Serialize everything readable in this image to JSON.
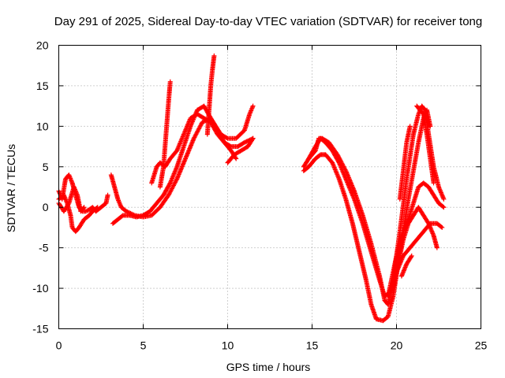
{
  "chart_data": {
    "type": "scatter",
    "title": "Day 291 of 2025, Sidereal Day-to-day VTEC variation (SDTVAR) for receiver tong",
    "xlabel": "GPS time / hours",
    "ylabel": "SDTVAR / TECUs",
    "xlim": [
      0,
      25
    ],
    "ylim": [
      -15,
      20
    ],
    "xticks": [
      0,
      5,
      10,
      15,
      20,
      25
    ],
    "yticks": [
      -15,
      -10,
      -5,
      0,
      5,
      10,
      15,
      20
    ],
    "grid": true,
    "marker": "+",
    "series": [
      {
        "name": "SDTVAR",
        "color": "#ff0000",
        "tracks": [
          [
            [
              0,
              2
            ],
            [
              0.2,
              1
            ],
            [
              0.4,
              3.5
            ],
            [
              0.6,
              4
            ],
            [
              0.8,
              3
            ],
            [
              1,
              1.5
            ],
            [
              1.2,
              0
            ],
            [
              1.4,
              -0.5
            ],
            [
              1.6,
              -0.5
            ],
            [
              1.8,
              -0.3
            ],
            [
              2,
              0
            ],
            [
              2.2,
              -0.5
            ],
            [
              2.5,
              0
            ],
            [
              2.8,
              0.5
            ],
            [
              2.9,
              1.5
            ]
          ],
          [
            [
              0,
              1
            ],
            [
              0.3,
              1.5
            ],
            [
              0.5,
              0.5
            ],
            [
              0.7,
              -1
            ],
            [
              0.8,
              -2.5
            ],
            [
              1,
              -3
            ],
            [
              1.2,
              -2.5
            ],
            [
              1.5,
              -1.5
            ],
            [
              1.8,
              -1
            ],
            [
              2,
              -0.5
            ],
            [
              2.3,
              0
            ]
          ],
          [
            [
              0,
              0.5
            ],
            [
              0.3,
              -0.5
            ],
            [
              0.6,
              0.5
            ],
            [
              0.9,
              2.5
            ],
            [
              1.1,
              1.5
            ],
            [
              1.3,
              -0.5
            ],
            [
              1.5,
              0
            ]
          ],
          [
            [
              3.1,
              4
            ],
            [
              3.3,
              2.5
            ],
            [
              3.5,
              1
            ],
            [
              3.7,
              0
            ],
            [
              4,
              -0.5
            ],
            [
              4.5,
              -1
            ],
            [
              5,
              -1.2
            ],
            [
              5.5,
              -1
            ],
            [
              6,
              0
            ],
            [
              6.5,
              1.5
            ],
            [
              7,
              3.5
            ],
            [
              7.5,
              6
            ],
            [
              8,
              8.5
            ],
            [
              8.5,
              10.5
            ],
            [
              9,
              11
            ],
            [
              9.3,
              10
            ],
            [
              9.6,
              9
            ],
            [
              10,
              8.5
            ],
            [
              10.5,
              8.5
            ],
            [
              11,
              9.5
            ],
            [
              11.3,
              11.5
            ],
            [
              11.5,
              12.5
            ]
          ],
          [
            [
              3.2,
              -2
            ],
            [
              3.5,
              -1.5
            ],
            [
              3.8,
              -1
            ],
            [
              4.2,
              -1
            ],
            [
              4.6,
              -1.2
            ],
            [
              5,
              -1
            ],
            [
              5.4,
              -0.5
            ],
            [
              5.8,
              0.5
            ],
            [
              6.2,
              1.5
            ],
            [
              6.6,
              3
            ],
            [
              7,
              5
            ],
            [
              7.4,
              7.5
            ],
            [
              7.8,
              10
            ],
            [
              8.2,
              12
            ],
            [
              8.6,
              12.5
            ],
            [
              9,
              11
            ],
            [
              9.4,
              9.5
            ],
            [
              9.8,
              8
            ],
            [
              10.2,
              7.5
            ],
            [
              10.6,
              7.5
            ],
            [
              11,
              8
            ],
            [
              11.5,
              8.5
            ]
          ],
          [
            [
              5.5,
              3
            ],
            [
              5.8,
              5
            ],
            [
              6,
              5.5
            ],
            [
              6.3,
              5
            ],
            [
              6.6,
              6
            ],
            [
              7,
              7
            ],
            [
              7.4,
              9
            ],
            [
              7.8,
              11
            ],
            [
              8.2,
              11.5
            ],
            [
              8.6,
              11
            ],
            [
              9,
              10.5
            ],
            [
              9.4,
              9
            ],
            [
              9.8,
              8
            ],
            [
              10.2,
              7
            ],
            [
              10.5,
              6
            ]
          ],
          [
            [
              6,
              2.5
            ],
            [
              6.2,
              5
            ],
            [
              6.35,
              9
            ],
            [
              6.5,
              13
            ],
            [
              6.6,
              15.5
            ]
          ],
          [
            [
              8.8,
              9
            ],
            [
              8.9,
              12
            ],
            [
              9,
              15
            ],
            [
              9.1,
              17
            ],
            [
              9.2,
              18.7
            ]
          ],
          [
            [
              14.5,
              5
            ],
            [
              14.8,
              6
            ],
            [
              15,
              6.5
            ],
            [
              15.2,
              7
            ],
            [
              15.4,
              8.5
            ],
            [
              15.6,
              8.5
            ],
            [
              16,
              8
            ],
            [
              16.5,
              6.5
            ],
            [
              17,
              4.5
            ],
            [
              17.5,
              2
            ],
            [
              18,
              -1
            ],
            [
              18.5,
              -4.5
            ],
            [
              19,
              -8.5
            ],
            [
              19.3,
              -11.5
            ],
            [
              19.5,
              -12
            ],
            [
              19.8,
              -9
            ],
            [
              20.2,
              -3
            ],
            [
              20.6,
              3.5
            ],
            [
              21,
              9
            ],
            [
              21.3,
              11.5
            ],
            [
              21.5,
              12.5
            ],
            [
              21.7,
              12
            ],
            [
              21.9,
              9
            ],
            [
              22.2,
              5
            ],
            [
              22.5,
              2.5
            ],
            [
              22.8,
              1
            ]
          ],
          [
            [
              14.5,
              4.5
            ],
            [
              14.8,
              5
            ],
            [
              15.2,
              6
            ],
            [
              15.5,
              6.5
            ],
            [
              15.8,
              6.5
            ],
            [
              16.2,
              5.5
            ],
            [
              16.6,
              3.5
            ],
            [
              17,
              1
            ],
            [
              17.4,
              -2
            ],
            [
              17.8,
              -5.5
            ],
            [
              18.2,
              -9
            ],
            [
              18.5,
              -12
            ],
            [
              18.8,
              -13.8
            ],
            [
              19.2,
              -14
            ],
            [
              19.5,
              -13.5
            ],
            [
              19.8,
              -11
            ],
            [
              20.1,
              -7
            ],
            [
              20.4,
              -3
            ],
            [
              20.7,
              1
            ],
            [
              21,
              4.5
            ],
            [
              21.3,
              8
            ],
            [
              21.6,
              11
            ],
            [
              21.8,
              12
            ],
            [
              22,
              10
            ]
          ],
          [
            [
              14.8,
              6
            ],
            [
              15.2,
              7.5
            ],
            [
              15.5,
              8.5
            ],
            [
              15.8,
              8
            ],
            [
              16.2,
              7
            ],
            [
              16.6,
              5.5
            ],
            [
              17,
              3.5
            ],
            [
              17.5,
              1
            ],
            [
              18,
              -2
            ],
            [
              18.5,
              -5.5
            ],
            [
              19,
              -9
            ],
            [
              19.3,
              -11
            ],
            [
              19.6,
              -10.5
            ],
            [
              20,
              -8
            ],
            [
              20.4,
              -6
            ],
            [
              20.8,
              -5
            ],
            [
              21.2,
              -4
            ],
            [
              21.6,
              -3
            ],
            [
              22,
              -2
            ],
            [
              22.4,
              -2
            ],
            [
              22.7,
              -2.5
            ]
          ],
          [
            [
              19.5,
              -11
            ],
            [
              19.8,
              -8
            ],
            [
              20.1,
              -5
            ],
            [
              20.4,
              -3
            ],
            [
              20.7,
              -1.5
            ],
            [
              21,
              0.5
            ],
            [
              21.3,
              2.5
            ],
            [
              21.6,
              3
            ],
            [
              21.9,
              2.5
            ],
            [
              22.2,
              1.5
            ],
            [
              22.5,
              0.5
            ],
            [
              22.8,
              0
            ]
          ],
          [
            [
              19.8,
              -10
            ],
            [
              20.1,
              -7
            ],
            [
              20.4,
              -4
            ],
            [
              20.7,
              -2
            ],
            [
              21,
              -1
            ],
            [
              21.3,
              0
            ],
            [
              21.6,
              -1
            ],
            [
              21.9,
              -2
            ],
            [
              22.2,
              -3.5
            ],
            [
              22.4,
              -5
            ]
          ],
          [
            [
              20.2,
              1
            ],
            [
              20.4,
              4.5
            ],
            [
              20.6,
              8
            ],
            [
              20.8,
              10
            ]
          ],
          [
            [
              20.3,
              -8.5
            ],
            [
              20.6,
              -7
            ],
            [
              20.9,
              -6
            ]
          ],
          [
            [
              21.2,
              12.5
            ],
            [
              21.4,
              12
            ],
            [
              21.6,
              11.5
            ],
            [
              21.8,
              9
            ],
            [
              22,
              6
            ],
            [
              22.2,
              3
            ]
          ],
          [
            [
              10,
              5.5
            ],
            [
              10.4,
              6.5
            ],
            [
              10.8,
              7
            ],
            [
              11.2,
              7.5
            ],
            [
              11.5,
              8.5
            ]
          ]
        ]
      }
    ]
  }
}
